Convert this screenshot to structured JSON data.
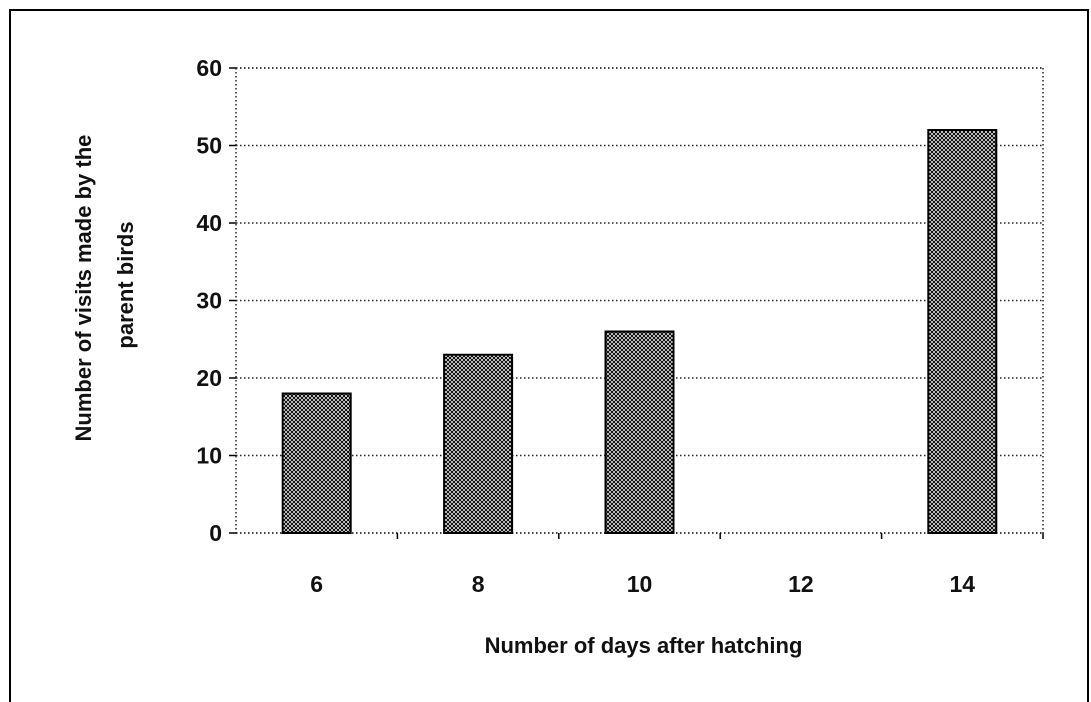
{
  "chart_data": {
    "type": "bar",
    "categories": [
      "6",
      "8",
      "10",
      "12",
      "14"
    ],
    "values": [
      18,
      23,
      26,
      0,
      52
    ],
    "xlabel": "Number of days after hatching",
    "ylabel_lines": [
      "Number of visits made by the",
      "parent birds"
    ],
    "ylim": [
      0,
      60
    ],
    "yticks": [
      0,
      10,
      20,
      30,
      40,
      50,
      60
    ],
    "grid": true,
    "bar_pattern": "crosshatch",
    "bar_color": "#000000",
    "legend": "none"
  }
}
